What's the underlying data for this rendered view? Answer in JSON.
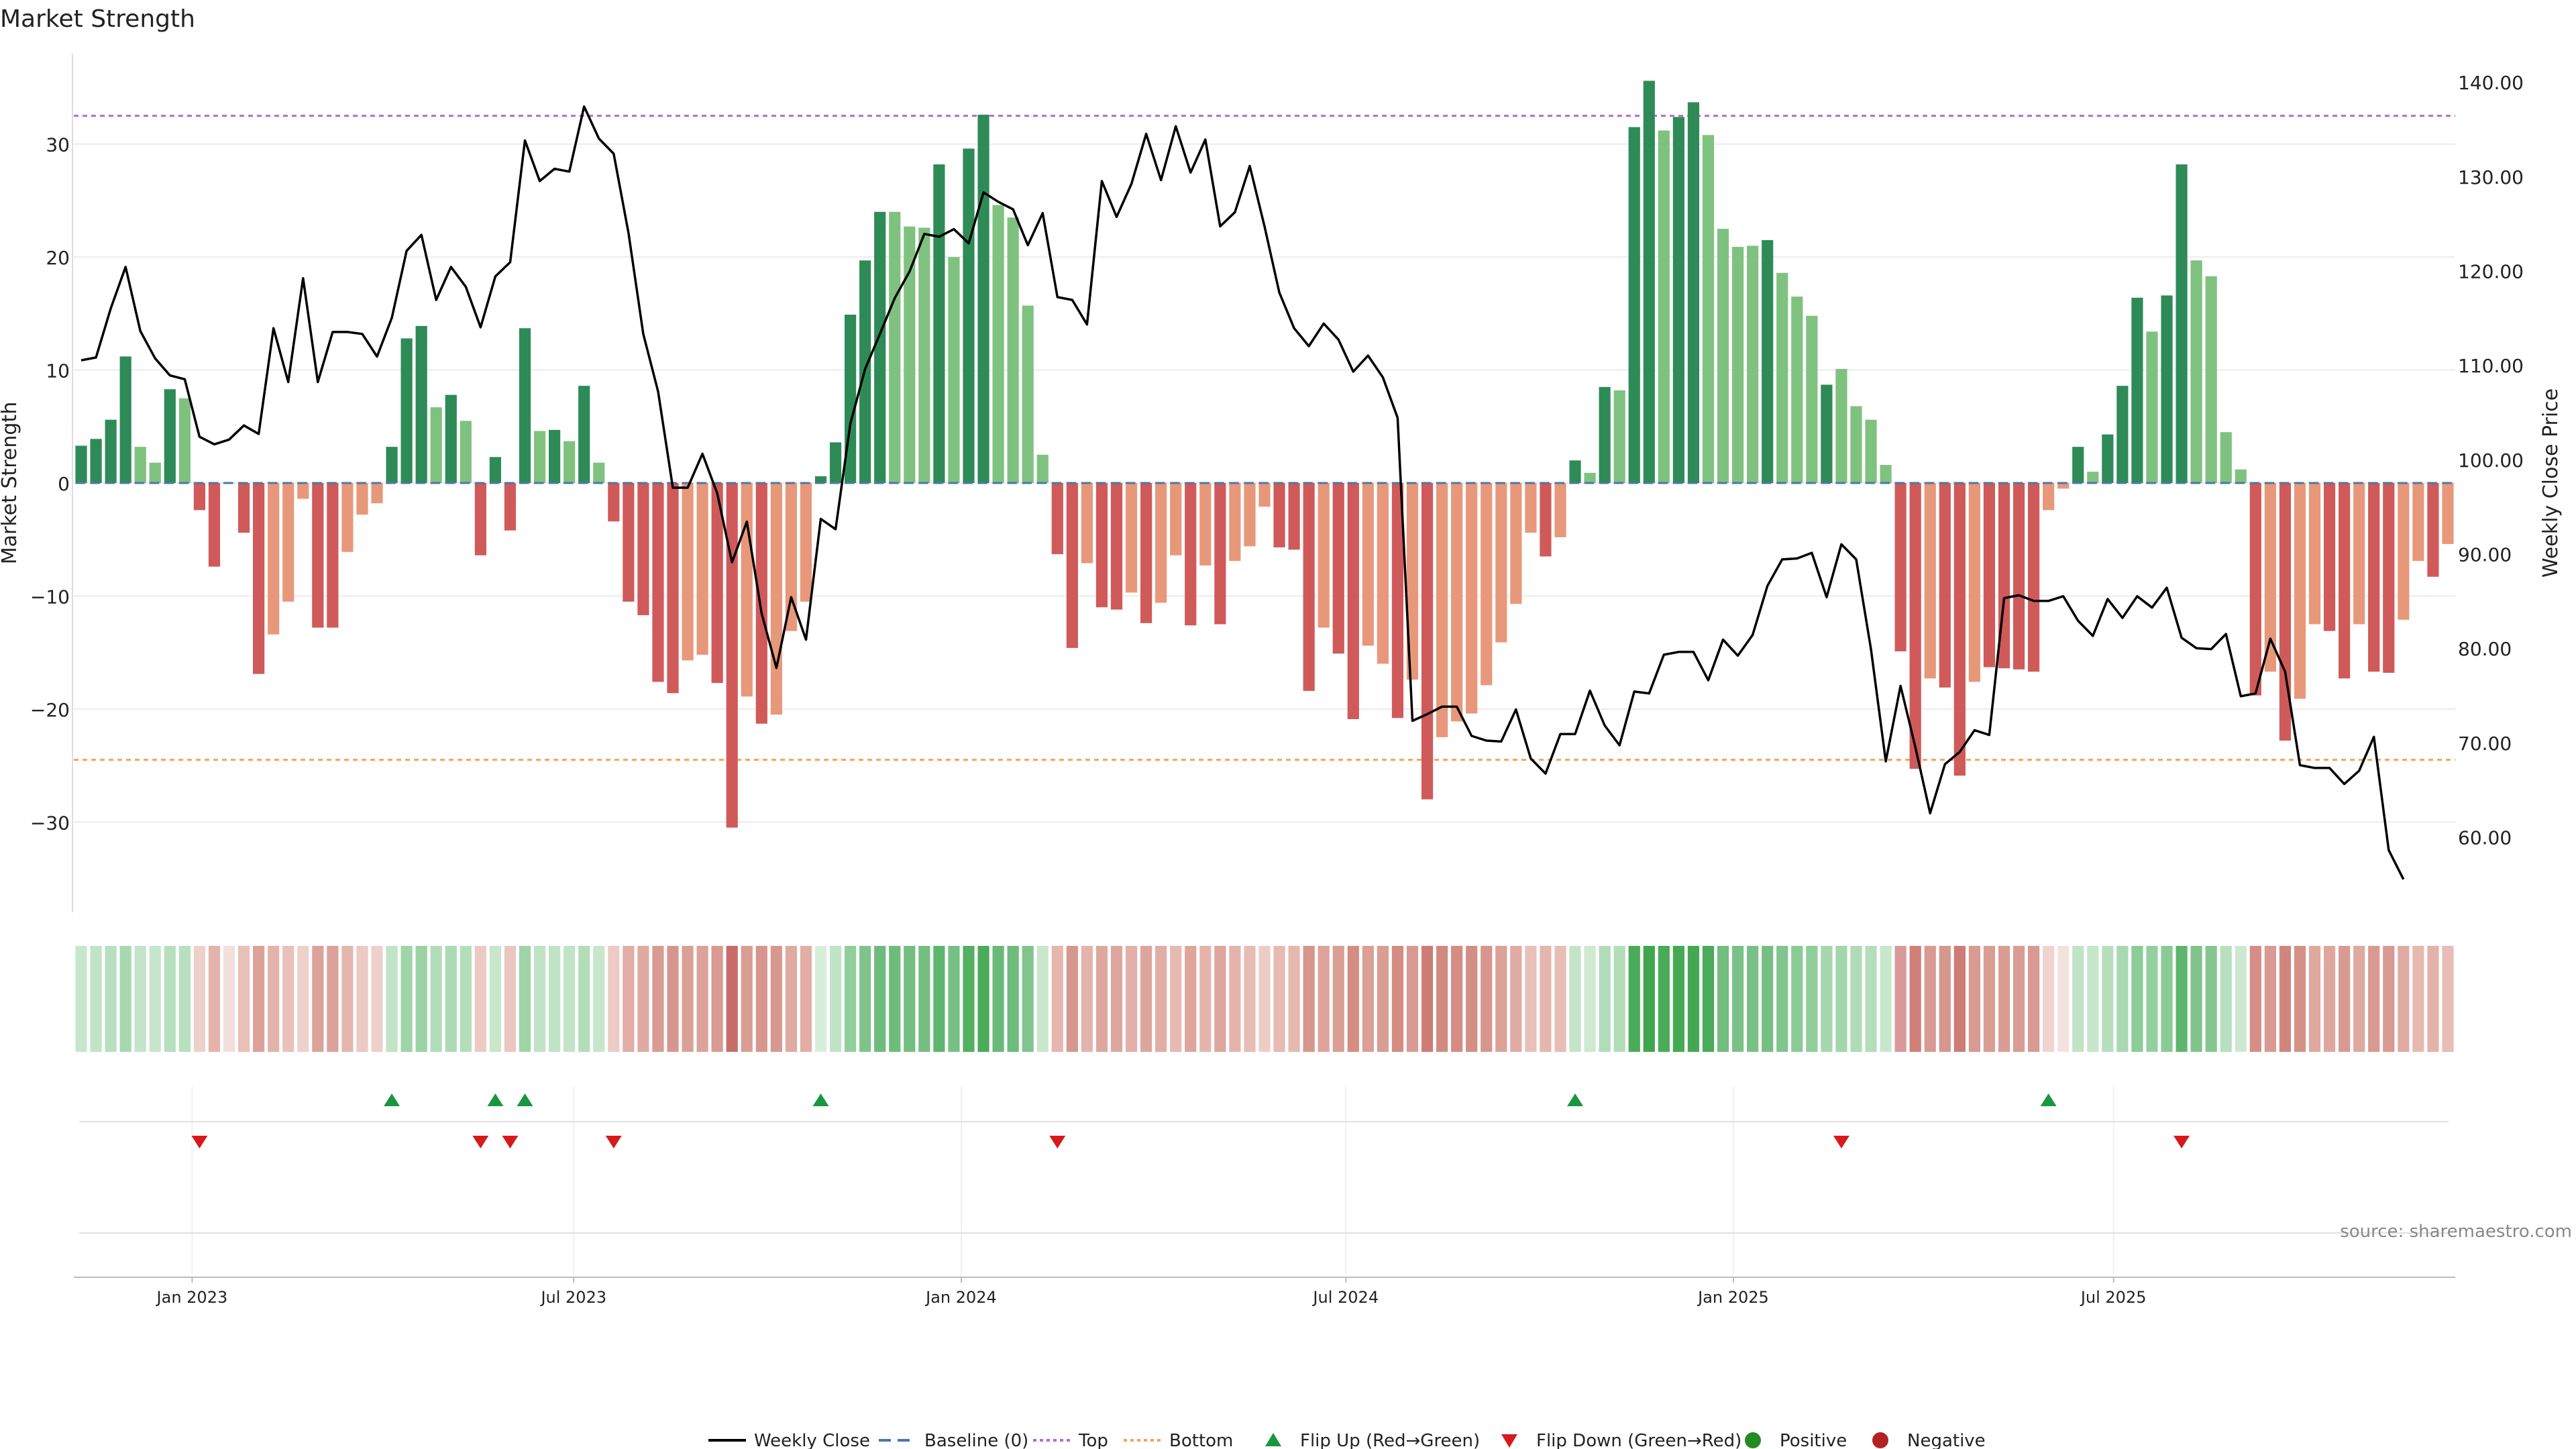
{
  "chart_data": {
    "type": "bar",
    "title": "Market Strength",
    "left_ylabel": "Market Strength",
    "right_ylabel": "Weekly Close Price",
    "source": "source: sharemaestro.com",
    "left_ylim": [
      -38,
      38
    ],
    "right_ylim": [
      52,
      143
    ],
    "left_ticks": [
      30,
      20,
      10,
      0,
      -10,
      -20,
      -30
    ],
    "left_tick_labels": [
      "30",
      "20",
      "10",
      "0",
      "−10",
      "−20",
      "−30"
    ],
    "right_ticks": [
      140,
      130,
      120,
      110,
      100,
      90,
      80,
      70,
      60
    ],
    "right_tick_labels": [
      "140.00",
      "130.00",
      "120.00",
      "110.00",
      "100.00",
      "90.00",
      "80.00",
      "70.00",
      "60.00"
    ],
    "top_level": 32.5,
    "bottom_level": -24.5,
    "x_ticks": [
      {
        "label": "Jan 2023",
        "week": 7.5
      },
      {
        "label": "Jul 2023",
        "week": 33.3
      },
      {
        "label": "Jan 2024",
        "week": 59.5
      },
      {
        "label": "Jul 2024",
        "week": 85.5
      },
      {
        "label": "Jan 2025",
        "week": 111.7
      },
      {
        "label": "Jul 2025",
        "week": 137.4
      }
    ],
    "strength": [
      3.3,
      3.9,
      5.6,
      11.2,
      3.2,
      1.8,
      8.3,
      7.5,
      -2.4,
      -7.4,
      0,
      -4.4,
      -16.9,
      -13.4,
      -10.5,
      -1.4,
      -12.8,
      -12.8,
      -6.1,
      -2.8,
      -1.8,
      3.2,
      12.8,
      13.9,
      6.7,
      7.8,
      5.5,
      -6.4,
      2.3,
      -4.2,
      13.7,
      4.6,
      4.7,
      3.7,
      8.6,
      1.8,
      -3.4,
      -10.5,
      -11.7,
      -17.6,
      -18.6,
      -15.7,
      -15.2,
      -17.7,
      -30.5,
      -18.9,
      -21.3,
      -20.5,
      -13.1,
      -10.5,
      0.6,
      3.6,
      14.9,
      19.7,
      24.0,
      24.0,
      22.7,
      22.6,
      28.2,
      20.0,
      29.6,
      32.6,
      24.6,
      23.5,
      15.7,
      2.5,
      -6.3,
      -14.6,
      -7.1,
      -11.0,
      -11.2,
      -9.7,
      -12.4,
      -10.6,
      -6.4,
      -12.6,
      -7.3,
      -12.5,
      -6.9,
      -5.6,
      -2.1,
      -5.7,
      -5.9,
      -18.4,
      -12.8,
      -15.1,
      -20.9,
      -14.4,
      -16.0,
      -20.8,
      -17.4,
      -28.0,
      -22.5,
      -21.1,
      -20.4,
      -17.9,
      -14.1,
      -10.7,
      -4.4,
      -6.5,
      -4.8,
      2.0,
      0.9,
      8.5,
      8.2,
      31.5,
      35.6,
      31.2,
      32.4,
      33.7,
      30.8,
      22.5,
      20.9,
      21.0,
      21.5,
      18.6,
      16.5,
      14.8,
      8.7,
      10.1,
      6.8,
      5.6,
      1.6,
      -14.9,
      -25.3,
      -17.3,
      -18.1,
      -25.9,
      -17.6,
      -16.3,
      -16.4,
      -16.5,
      -16.7,
      -2.4,
      -0.5,
      3.2,
      1.0,
      4.3,
      8.6,
      16.4,
      13.4,
      16.6,
      28.2,
      19.7,
      18.3,
      4.5,
      1.2,
      -18.8,
      -16.7,
      -22.8,
      -19.1,
      -12.5,
      -13.1,
      -17.3,
      -12.5,
      -16.7,
      -16.8,
      -12.1,
      -6.9,
      -8.3,
      -5.4
    ],
    "strength_bar_colors": [
      "#2e8b57",
      "#2e8b57",
      "#2e8b57",
      "#2e8b57",
      "#7fc27f",
      "#7fc27f",
      "#2e8b57",
      "#7fc27f",
      "#d05a5a",
      "#d05a5a",
      "#e8987a",
      "#d05a5a",
      "#d05a5a",
      "#e8987a",
      "#e8987a",
      "#e8987a",
      "#d05a5a",
      "#d05a5a",
      "#e8987a",
      "#e8987a",
      "#e8987a",
      "#2e8b57",
      "#2e8b57",
      "#2e8b57",
      "#7fc27f",
      "#2e8b57",
      "#7fc27f",
      "#d05a5a",
      "#2e8b57",
      "#d05a5a",
      "#2e8b57",
      "#7fc27f",
      "#2e8b57",
      "#7fc27f",
      "#2e8b57",
      "#7fc27f",
      "#d05a5a",
      "#d05a5a",
      "#d05a5a",
      "#d05a5a",
      "#d05a5a",
      "#e8987a",
      "#e8987a",
      "#d05a5a",
      "#d05a5a",
      "#e8987a",
      "#d05a5a",
      "#e8987a",
      "#e8987a",
      "#e8987a",
      "#2e8b57",
      "#2e8b57",
      "#2e8b57",
      "#2e8b57",
      "#2e8b57",
      "#7fc27f",
      "#7fc27f",
      "#7fc27f",
      "#2e8b57",
      "#7fc27f",
      "#2e8b57",
      "#2e8b57",
      "#7fc27f",
      "#7fc27f",
      "#7fc27f",
      "#7fc27f",
      "#d05a5a",
      "#d05a5a",
      "#e8987a",
      "#d05a5a",
      "#d05a5a",
      "#e8987a",
      "#d05a5a",
      "#e8987a",
      "#e8987a",
      "#d05a5a",
      "#e8987a",
      "#d05a5a",
      "#e8987a",
      "#e8987a",
      "#e8987a",
      "#d05a5a",
      "#d05a5a",
      "#d05a5a",
      "#e8987a",
      "#d05a5a",
      "#d05a5a",
      "#e8987a",
      "#e8987a",
      "#d05a5a",
      "#e8987a",
      "#d05a5a",
      "#e8987a",
      "#e8987a",
      "#e8987a",
      "#e8987a",
      "#e8987a",
      "#e8987a",
      "#e8987a",
      "#d05a5a",
      "#e8987a",
      "#2e8b57",
      "#7fc27f",
      "#2e8b57",
      "#7fc27f",
      "#2e8b57",
      "#2e8b57",
      "#7fc27f",
      "#2e8b57",
      "#2e8b57",
      "#7fc27f",
      "#7fc27f",
      "#7fc27f",
      "#7fc27f",
      "#2e8b57",
      "#7fc27f",
      "#7fc27f",
      "#7fc27f",
      "#2e8b57",
      "#7fc27f",
      "#7fc27f",
      "#7fc27f",
      "#7fc27f",
      "#d05a5a",
      "#d05a5a",
      "#e8987a",
      "#d05a5a",
      "#d05a5a",
      "#e8987a",
      "#d05a5a",
      "#d05a5a",
      "#d05a5a",
      "#d05a5a",
      "#e8987a",
      "#e8987a",
      "#2e8b57",
      "#7fc27f",
      "#2e8b57",
      "#2e8b57",
      "#2e8b57",
      "#7fc27f",
      "#2e8b57",
      "#2e8b57",
      "#7fc27f",
      "#7fc27f",
      "#7fc27f",
      "#7fc27f",
      "#d05a5a",
      "#e8987a",
      "#d05a5a",
      "#e8987a",
      "#e8987a",
      "#d05a5a",
      "#d05a5a",
      "#e8987a",
      "#d05a5a",
      "#d05a5a",
      "#e8987a",
      "#e8987a",
      "#d05a5a",
      "#e8987a"
    ],
    "heat_colors": [
      "#c7e6cc",
      "#c1e3c6",
      "#b8dfbf",
      "#a7d8b0",
      "#c3e4c8",
      "#c7e6cc",
      "#b6dfbe",
      "#b8dfbf",
      "#eed0cb",
      "#e4b4ac",
      "#f3dfdc",
      "#e8c0b9",
      "#dca29a",
      "#e3b3ab",
      "#e9c1b9",
      "#eed0cb",
      "#dca29a",
      "#dca29a",
      "#e5b6ae",
      "#ecc9c3",
      "#eed0cb",
      "#c1e3c6",
      "#9ed4a8",
      "#9ad2a4",
      "#b1dcb9",
      "#acdab5",
      "#b4deba",
      "#eccac4",
      "#c7e6cc",
      "#ebc7c1",
      "#9ed4a8",
      "#bfe3c4",
      "#bfe3c4",
      "#c1e3c6",
      "#b3ddb9",
      "#c7e6cc",
      "#edcbc5",
      "#e1ada5",
      "#e0aaa2",
      "#d89a92",
      "#d7968d",
      "#daa096",
      "#dba399",
      "#d89a92",
      "#c96b6b",
      "#d99d94",
      "#d7968d",
      "#d79890",
      "#dfaaa1",
      "#e1ada5",
      "#d7eedb",
      "#c1e3c6",
      "#90cf9b",
      "#7fc28b",
      "#6ebc7c",
      "#6ebc7c",
      "#73be80",
      "#73be80",
      "#5eb56d",
      "#77c084",
      "#53b061",
      "#4aab58",
      "#6ab978",
      "#6fbb7d",
      "#82c48e",
      "#c8e7cd",
      "#e5b6ae",
      "#d6978e",
      "#e4b4ac",
      "#dea79e",
      "#dea79e",
      "#e2b0a8",
      "#dea59c",
      "#e1aea6",
      "#e6b9b1",
      "#dda59c",
      "#e4b4ac",
      "#dda59c",
      "#e4b4ac",
      "#e7bcb4",
      "#eeccc6",
      "#e6b9b1",
      "#e6b8b0",
      "#d6968d",
      "#dea39a",
      "#da9e95",
      "#d48c83",
      "#db9f96",
      "#d99d94",
      "#d48c83",
      "#d89a92",
      "#cd7c76",
      "#d28a80",
      "#d48c83",
      "#d48e85",
      "#d7968d",
      "#dba298",
      "#e0aba3",
      "#e8c0b9",
      "#e5b6ae",
      "#e7bdb5",
      "#c3e4c8",
      "#cfe9d3",
      "#b1dcb9",
      "#b3ddb9",
      "#4aab58",
      "#3fa64d",
      "#4aab58",
      "#45a953",
      "#43a851",
      "#4aab58",
      "#72be7f",
      "#7ac187",
      "#79c086",
      "#76bf83",
      "#82c48e",
      "#8acb95",
      "#8fcd99",
      "#a6d7ae",
      "#a2d6ab",
      "#afdbb6",
      "#b4deba",
      "#c8e7cd",
      "#d8999b",
      "#d07f79",
      "#d89a92",
      "#d6978e",
      "#cd7c76",
      "#d89a92",
      "#d99d94",
      "#d99d94",
      "#d99d94",
      "#d89a92",
      "#f0d3cf",
      "#f4e2df",
      "#c1e3c6",
      "#c7e6cc",
      "#b7dfbe",
      "#a8d8b1",
      "#8ccc97",
      "#94d09f",
      "#8acb95",
      "#5eb56d",
      "#80c38c",
      "#85c690",
      "#b8dfbf",
      "#cde8d1",
      "#d48e85",
      "#d89a92",
      "#d0857e",
      "#d59188",
      "#dfa9a0",
      "#dea79e",
      "#d89a92",
      "#dfa9a0",
      "#d89a92",
      "#d89a92",
      "#e0aba3",
      "#e6b9b1",
      "#e3b3ab",
      "#e7bdb5"
    ],
    "weekly_close": [
      110.5,
      110.8,
      116.0,
      120.4,
      113.6,
      110.7,
      108.9,
      108.5,
      102.4,
      101.6,
      102.1,
      103.6,
      102.7,
      113.9,
      108.2,
      119.2,
      108.2,
      113.5,
      113.5,
      113.3,
      110.9,
      115.0,
      122.1,
      123.8,
      116.9,
      120.4,
      118.3,
      114.0,
      119.4,
      120.9,
      133.8,
      129.5,
      130.8,
      130.5,
      137.4,
      134.0,
      132.4,
      124.0,
      113.3,
      107.2,
      97.0,
      97.0,
      100.6,
      96.4,
      89.1,
      93.4,
      83.7,
      77.9,
      85.4,
      80.9,
      93.7,
      92.6,
      103.8,
      109.6,
      113.3,
      117.1,
      119.9,
      123.9,
      123.6,
      124.4,
      122.9,
      128.3,
      127.3,
      126.5,
      122.7,
      126.1,
      117.2,
      116.9,
      114.3,
      129.5,
      125.7,
      129.2,
      134.5,
      129.6,
      135.3,
      130.4,
      133.9,
      124.7,
      126.2,
      131.1,
      124.7,
      117.7,
      113.9,
      112.0,
      114.4,
      112.7,
      109.3,
      111.0,
      108.7,
      104.4,
      72.3,
      73.0,
      73.8,
      73.8,
      70.7,
      70.2,
      70.1,
      73.5,
      68.3,
      66.7,
      70.9,
      70.9,
      75.5,
      71.8,
      69.7,
      75.4,
      75.2,
      79.3,
      79.6,
      79.6,
      76.6,
      80.9,
      79.2,
      81.4,
      86.6,
      89.4,
      89.5,
      90.1,
      85.4,
      91.0,
      89.4,
      79.9,
      68.0,
      76.0,
      69.5,
      62.5,
      67.7,
      69.0,
      71.3,
      70.8,
      85.3,
      85.6,
      85.0,
      85.0,
      85.5,
      82.9,
      81.3,
      85.2,
      83.2,
      85.5,
      84.3,
      86.4,
      81.1,
      80.0,
      79.9,
      81.5,
      74.9,
      75.2,
      81.0,
      77.5,
      67.6,
      67.3,
      67.3,
      65.6,
      67.0,
      70.6,
      58.6,
      55.5
    ],
    "flip_up_weeks": [
      21,
      28,
      30,
      50,
      101,
      133
    ],
    "flip_down_weeks": [
      8,
      27,
      29,
      36,
      66,
      119,
      142
    ],
    "legend": [
      {
        "label": "Weekly Close",
        "symbol": "line",
        "color": "#000000"
      },
      {
        "label": "Baseline (0)",
        "symbol": "dash",
        "color": "#4c78a8"
      },
      {
        "label": "Top",
        "symbol": "dot",
        "color": "#b26bd1"
      },
      {
        "label": "Bottom",
        "symbol": "dot",
        "color": "#f4a35b"
      },
      {
        "label": "Flip Up (Red→Green)",
        "symbol": "tri-up",
        "color": "#1a9641"
      },
      {
        "label": "Flip Down (Green→Red)",
        "symbol": "tri-down",
        "color": "#d7191c"
      },
      {
        "label": "Positive",
        "symbol": "circle",
        "color": "#228b22"
      },
      {
        "label": "Negative",
        "symbol": "circle",
        "color": "#b22222"
      }
    ]
  }
}
